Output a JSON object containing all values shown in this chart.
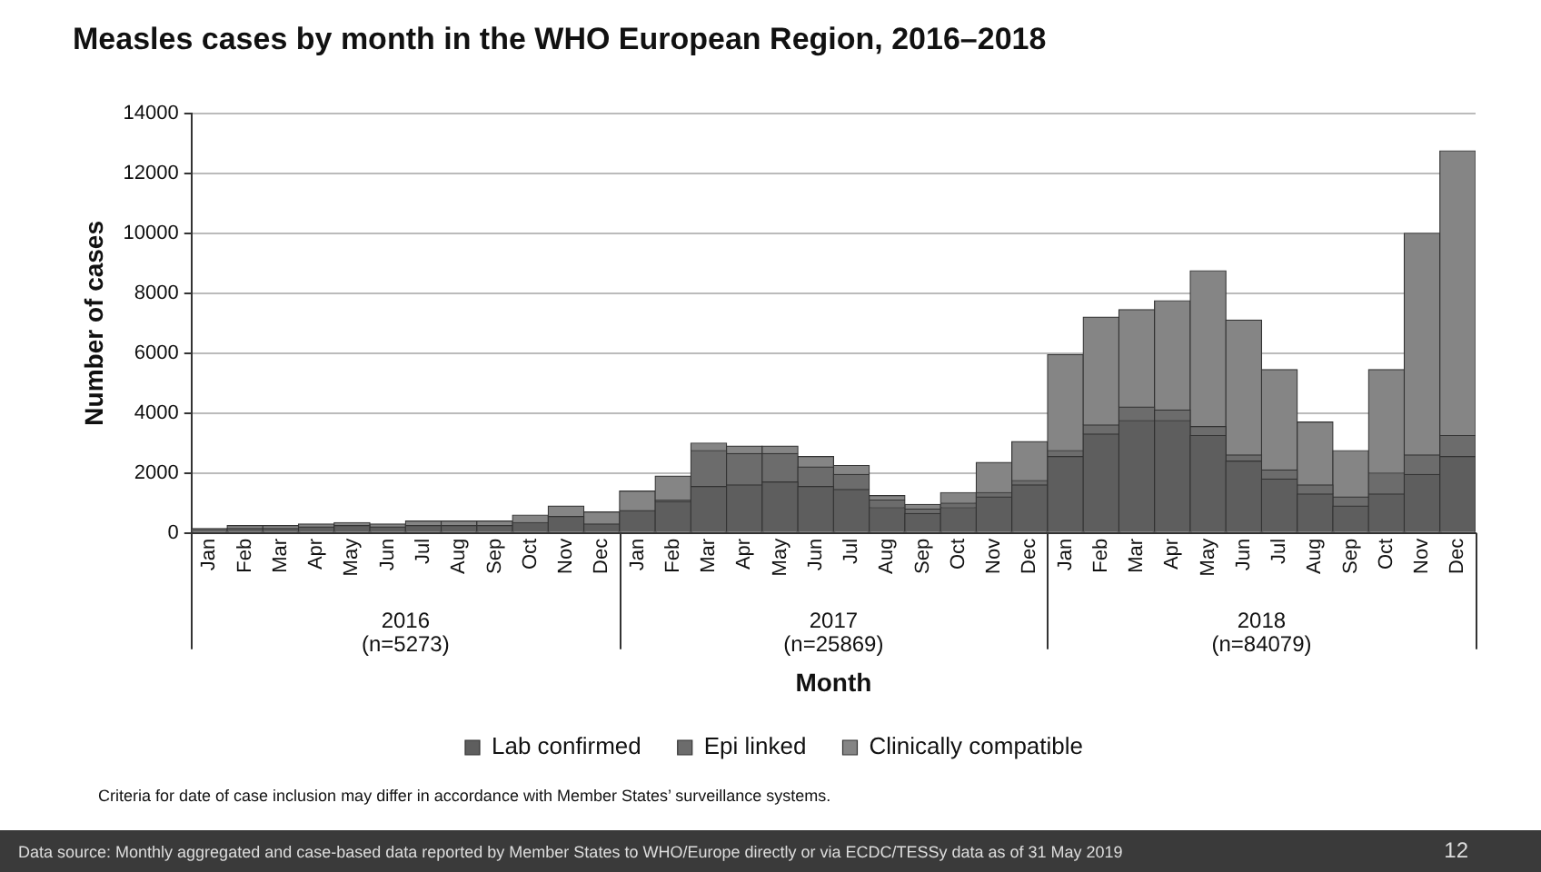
{
  "chart_data": {
    "type": "bar",
    "stacked": true,
    "title": "Measles cases by month in the WHO European Region, 2016–2018",
    "xlabel": "Month",
    "ylabel": "Number of cases",
    "categories": [
      "Jan",
      "Feb",
      "Mar",
      "Apr",
      "May",
      "Jun",
      "Jul",
      "Aug",
      "Sep",
      "Oct",
      "Nov",
      "Dec",
      "Jan",
      "Feb",
      "Mar",
      "Apr",
      "May",
      "Jun",
      "Jul",
      "Aug",
      "Sep",
      "Oct",
      "Nov",
      "Dec",
      "Jan",
      "Feb",
      "Mar",
      "Apr",
      "May",
      "Jun",
      "Jul",
      "Aug",
      "Sep",
      "Oct",
      "Nov",
      "Dec"
    ],
    "series": [
      {
        "name": "Lab confirmed",
        "color": "#5e5e5e",
        "values": [
          150,
          150,
          150,
          200,
          250,
          200,
          250,
          250,
          250,
          350,
          550,
          300,
          750,
          1050,
          1550,
          1600,
          1700,
          1550,
          1450,
          850,
          650,
          850,
          1200,
          1600,
          2550,
          3300,
          3750,
          3750,
          3250,
          2400,
          1800,
          1300,
          900,
          1300,
          1950,
          2550
        ]
      },
      {
        "name": "Epi linked",
        "color": "#6c6c6c",
        "values": [
          null,
          null,
          null,
          null,
          null,
          null,
          null,
          null,
          null,
          null,
          null,
          null,
          null,
          50,
          1200,
          1050,
          950,
          650,
          500,
          250,
          150,
          150,
          150,
          150,
          200,
          300,
          450,
          350,
          300,
          200,
          300,
          300,
          300,
          700,
          650,
          700
        ]
      },
      {
        "name": "Clinically compatible",
        "color": "#858585",
        "values": [
          null,
          100,
          100,
          100,
          100,
          100,
          150,
          150,
          150,
          250,
          350,
          400,
          650,
          800,
          250,
          250,
          250,
          350,
          300,
          150,
          150,
          350,
          1000,
          1300,
          3200,
          3600,
          3250,
          3650,
          5200,
          4500,
          3350,
          2100,
          1550,
          3450,
          7400,
          9500
        ]
      }
    ],
    "ylim": [
      0,
      14000
    ],
    "yticks": [
      0,
      2000,
      4000,
      6000,
      8000,
      10000,
      12000,
      14000
    ],
    "grid": "y",
    "legend": "bottom",
    "annotations": [
      "2016\n(n=5273)",
      "2017\n(n=25869)",
      "2018\n(n=84079)",
      "Criteria for date of case inclusion may differ in accordance with Member States’ surveillance systems.",
      "Data source: Monthly aggregated and case-based data reported by Member States to WHO/Europe directly or via ECDC/TESSy data as of 31 May 2019",
      "12"
    ]
  }
}
